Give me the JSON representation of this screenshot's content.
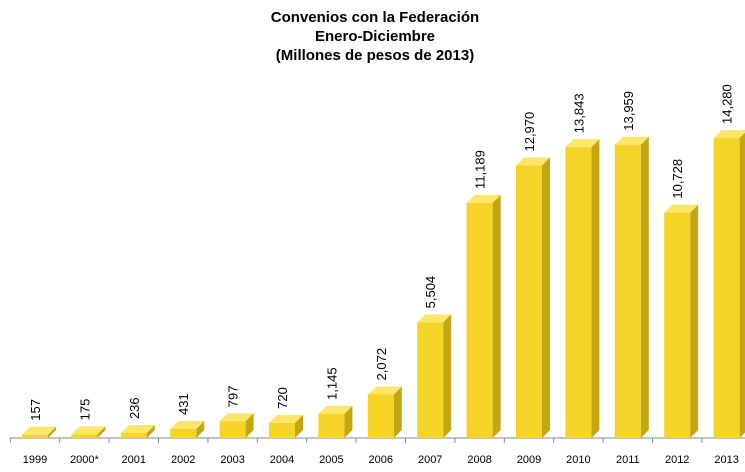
{
  "chart_data": {
    "type": "bar",
    "title": [
      "Convenios con la Federación",
      "Enero-Diciembre",
      "(Millones de pesos de 2013)"
    ],
    "categories": [
      "1999",
      "2000*",
      "2001",
      "2002",
      "2003",
      "2004",
      "2005",
      "2006",
      "2007",
      "2008",
      "2009",
      "2010",
      "2011",
      "2012",
      "2013"
    ],
    "values": [
      157,
      175,
      236,
      431,
      797,
      720,
      1145,
      2072,
      5504,
      11189,
      12970,
      13843,
      13959,
      10728,
      14280
    ],
    "value_labels": [
      "157",
      "175",
      "236",
      "431",
      "797",
      "720",
      "1,145",
      "2,072",
      "5,504",
      "11,189",
      "12,970",
      "13,843",
      "13,959",
      "10,728",
      "14,280"
    ],
    "color": "#f5d327"
  }
}
